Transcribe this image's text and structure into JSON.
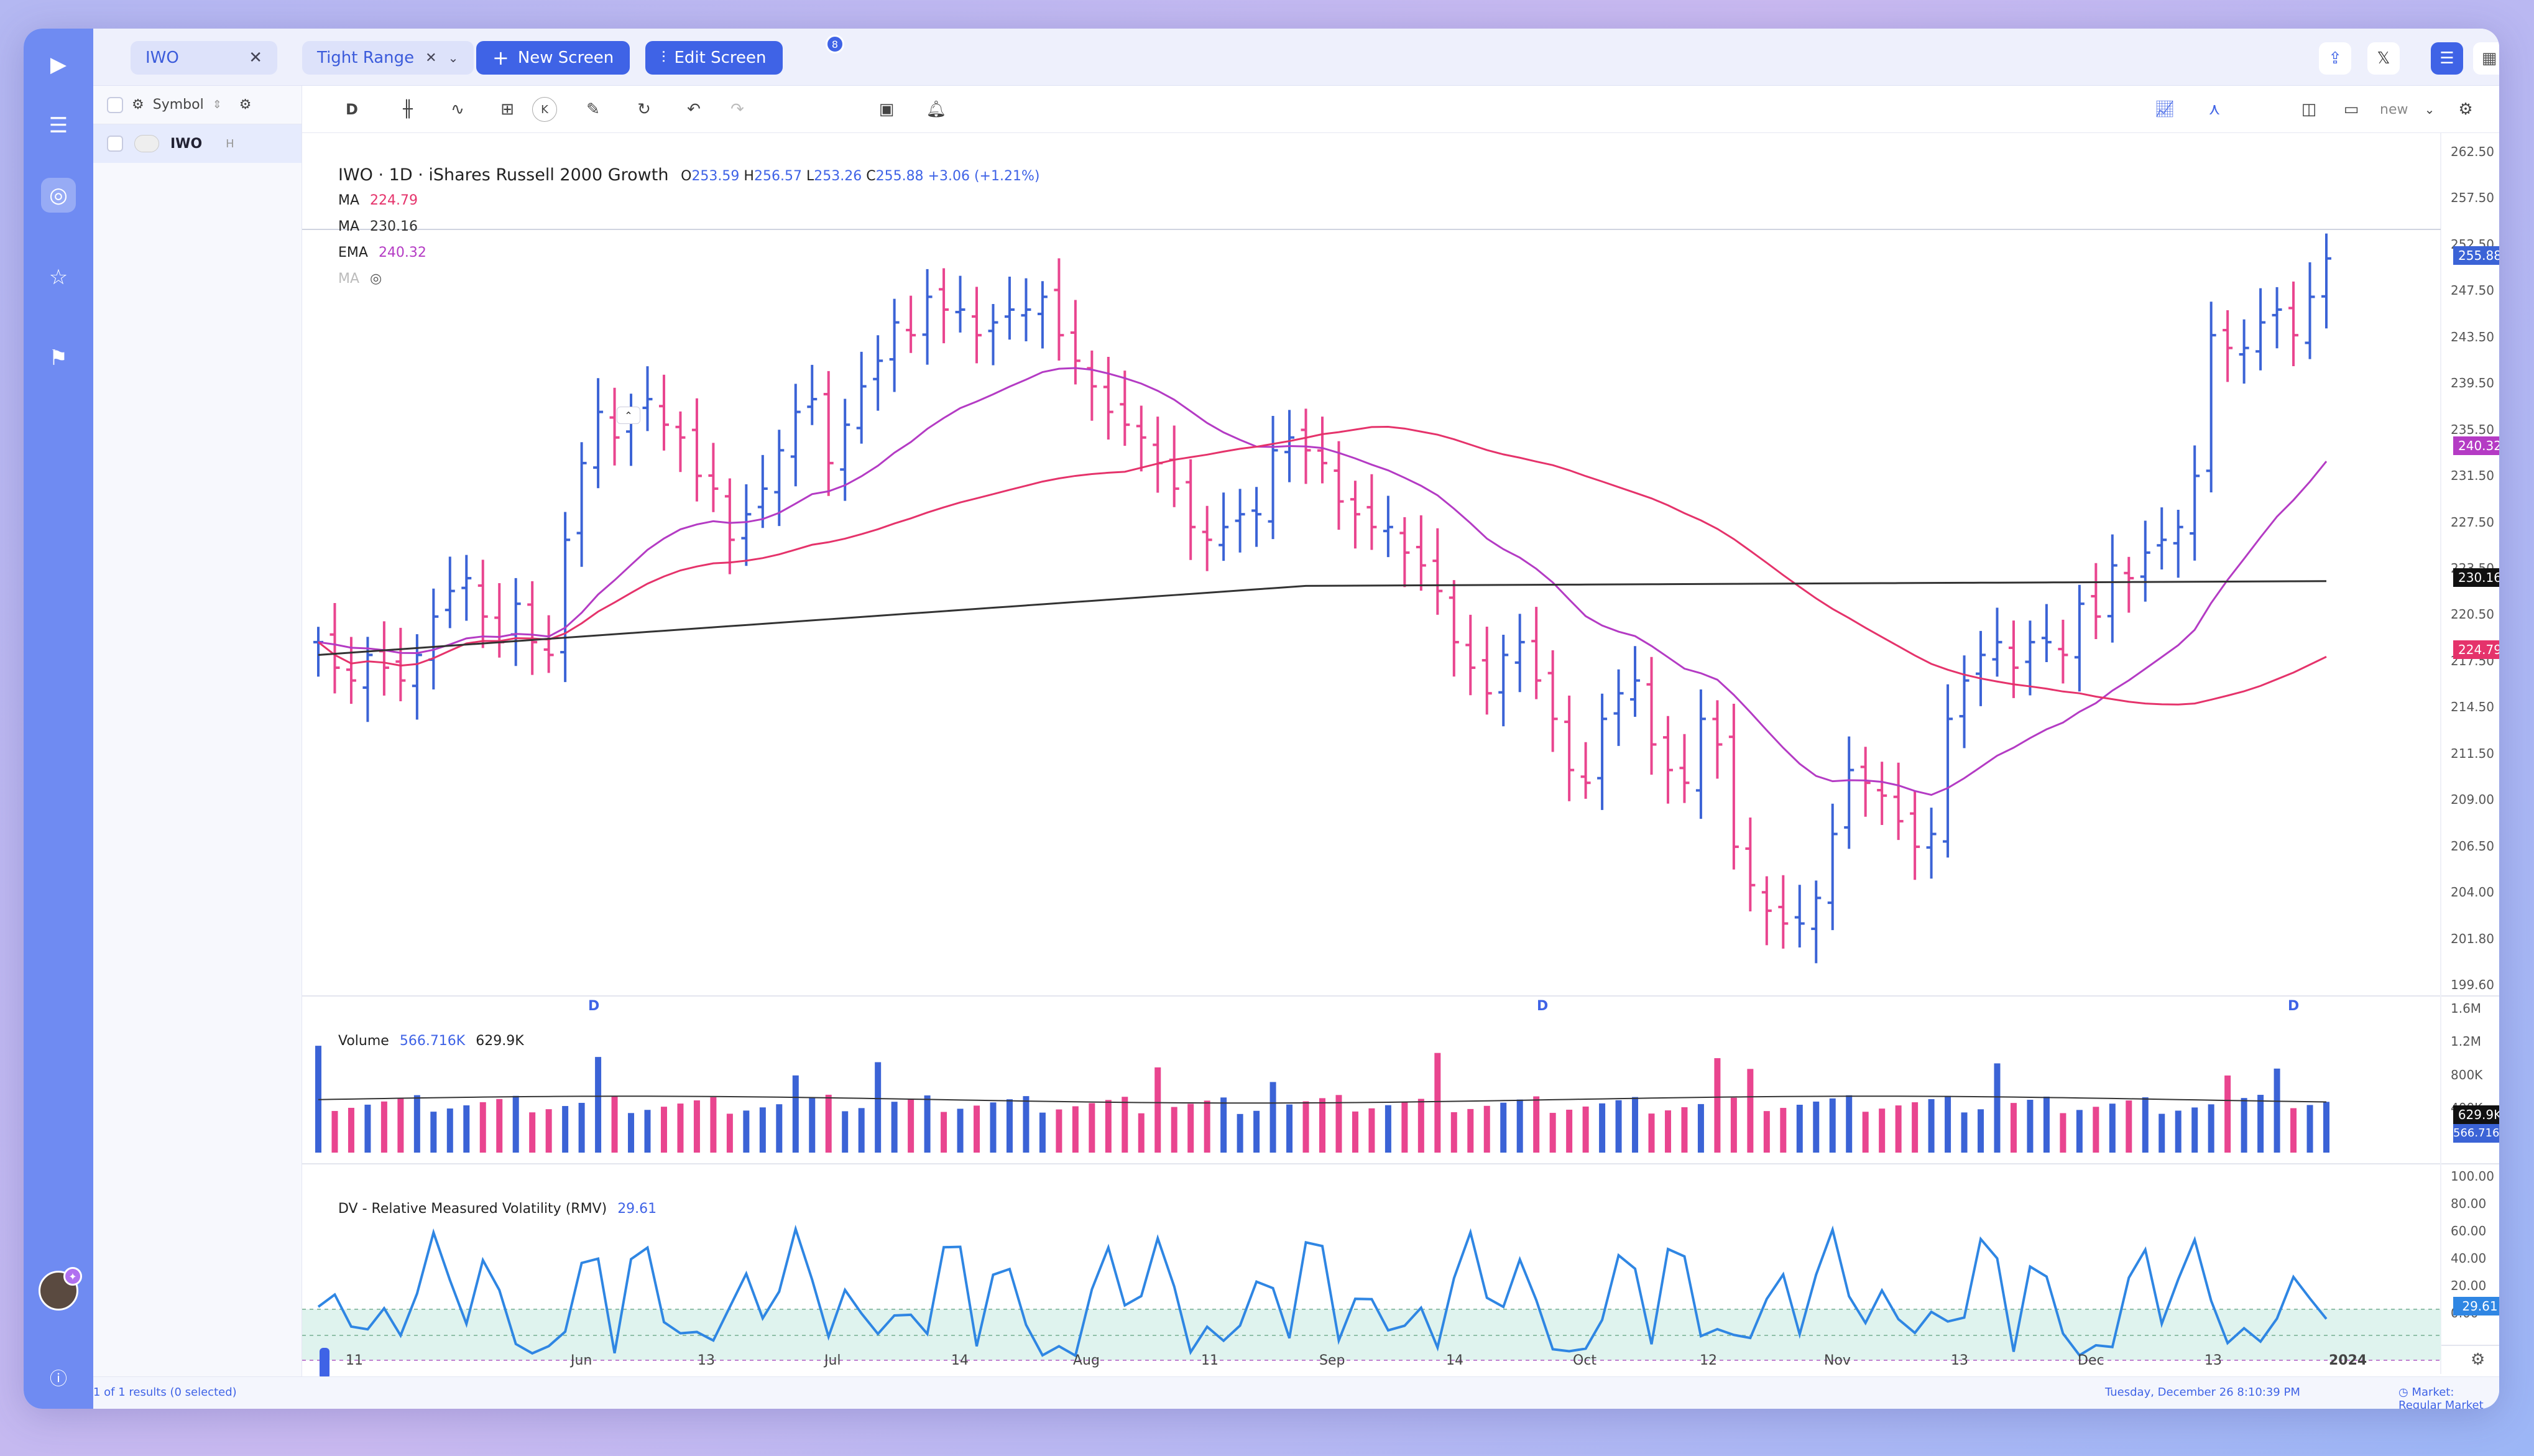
{
  "app": {
    "tab_symbol": "IWO",
    "screen_name": "Tight Range",
    "new_screen_label": "New Screen",
    "edit_screen_label": "Edit Screen",
    "edit_screen_count": "8"
  },
  "sidebar": {
    "column_header": "Symbol",
    "rows": [
      {
        "symbol": "IWO",
        "flag": "H"
      }
    ],
    "footer": "1 of 1 results (0 selected)"
  },
  "toolbar": {
    "interval": "D",
    "indicator_hotkey": "K",
    "layout_name": "new"
  },
  "legend": {
    "title": "IWO · 1D · iShares Russell 2000 Growth",
    "open_label": "O",
    "open": "253.59",
    "high_label": "H",
    "high": "256.57",
    "low_label": "L",
    "low": "253.26",
    "close_label": "C",
    "close": "255.88",
    "change": "+3.06 (+1.21%)",
    "ma1_label": "MA",
    "ma1_value": "224.79",
    "ma2_label": "MA",
    "ma2_value": "230.16",
    "ema_label": "EMA",
    "ema_value": "240.32",
    "ma_hidden_label": "MA",
    "volume_label": "Volume",
    "volume_value": "566.716K",
    "volume_ma": "629.9K",
    "rmv_label": "DV - Relative Measured Volatility (RMV)",
    "rmv_value": "29.61"
  },
  "price_axis": {
    "ticks": [
      "262.50",
      "257.50",
      "252.50",
      "247.50",
      "243.50",
      "239.50",
      "235.50",
      "231.50",
      "227.50",
      "223.50",
      "220.50",
      "217.50",
      "214.50",
      "211.50",
      "209.00",
      "206.50",
      "204.00",
      "201.80",
      "199.60"
    ],
    "last_price": "255.88",
    "ema_tag": "240.32",
    "ma200_tag": "230.16",
    "ma50_tag": "224.79"
  },
  "volume_axis": {
    "ticks": [
      "1.6M",
      "1.2M",
      "800K",
      "400K"
    ],
    "ma_tag": "629.9K",
    "vol_tag": "566.716K"
  },
  "rmv_axis": {
    "ticks": [
      "100.00",
      "80.00",
      "60.00",
      "40.00",
      "20.00",
      "0.00"
    ],
    "tag": "29.61"
  },
  "time_axis": {
    "labels": [
      "11",
      "Jun",
      "13",
      "Jul",
      "14",
      "Aug",
      "11",
      "Sep",
      "14",
      "Oct",
      "12",
      "Nov",
      "13",
      "Dec",
      "13",
      "2024"
    ],
    "earnings_markers": [
      "D",
      "D",
      "D"
    ]
  },
  "status": {
    "datetime": "Tuesday, December 26  8:10:39   PM",
    "market": "Market: Regular Market"
  },
  "colors": {
    "up": "#3b63d6",
    "down": "#e9458f",
    "ema": "#b43bc4",
    "ma50": "#e5336b",
    "ma200": "#333333",
    "rmv": "#2f86e3",
    "accent": "#3f63e6"
  },
  "chart_data": {
    "type": "ohlc-bar",
    "symbol": "IWO",
    "interval": "1D",
    "ohlc_summary": {
      "open": 253.59,
      "high": 256.57,
      "low": 253.26,
      "close": 255.88,
      "change": 3.06,
      "change_pct": 1.21
    },
    "closes_approx": [
      226,
      224,
      223,
      225,
      224,
      223,
      225,
      228,
      230,
      231,
      228,
      226,
      229,
      226,
      225,
      234,
      240,
      244,
      242,
      244,
      245,
      243,
      242,
      239,
      238,
      234,
      236,
      238,
      241,
      244,
      245,
      240,
      243,
      246,
      248,
      251,
      250,
      253,
      252,
      252,
      250,
      251,
      252,
      252,
      253,
      250,
      248,
      246,
      244,
      243,
      242,
      240,
      238,
      235,
      234,
      235,
      236,
      236,
      241,
      242,
      241,
      240,
      237,
      236,
      235,
      235,
      233,
      232,
      230,
      226,
      224,
      222,
      225,
      226,
      223,
      220,
      216,
      215,
      220,
      222,
      223,
      218,
      216,
      215,
      220,
      218,
      210,
      207,
      205,
      204,
      204,
      206,
      211,
      216,
      215,
      214,
      212,
      210,
      211,
      220,
      223,
      225,
      226,
      224,
      226,
      226,
      225,
      229,
      228,
      232,
      231,
      233,
      234,
      235,
      239,
      250,
      249,
      249,
      251,
      252,
      250,
      253,
      256
    ]
  }
}
